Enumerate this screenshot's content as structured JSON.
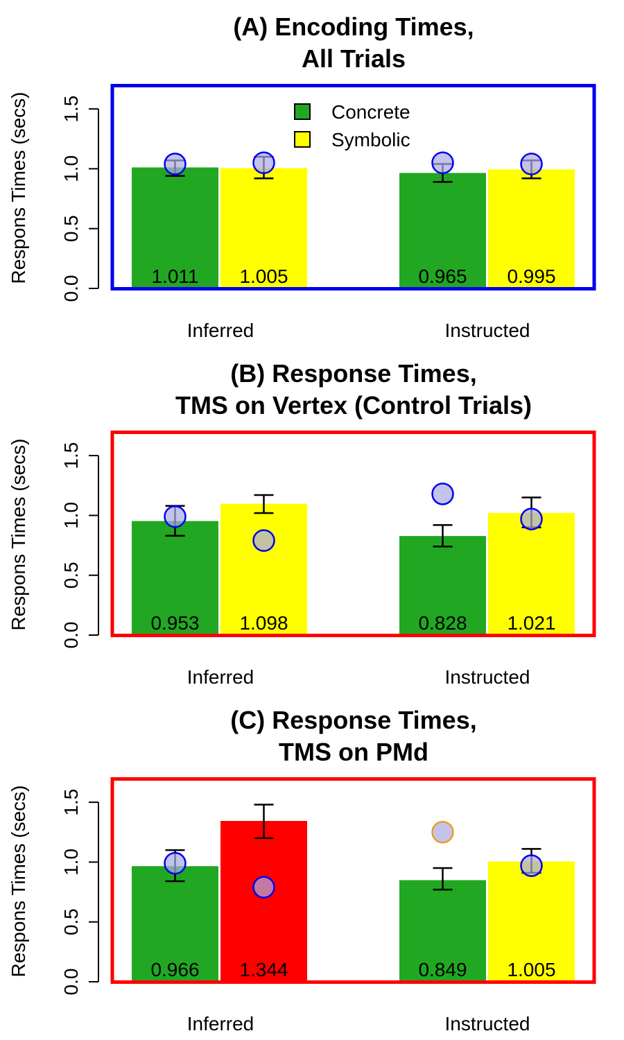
{
  "colors": {
    "concrete": "#22a722",
    "symbolic": "#ffff00",
    "highlight": "#ff0000",
    "marker_fill": "#a9a9e6",
    "marker_stroke": "#0000ee",
    "marker_stroke_alt": "#e6a020",
    "frame_a": "#0000ee",
    "frame_bc": "#ff0000"
  },
  "legend": {
    "items": [
      {
        "name": "Concrete",
        "color": "#22a722"
      },
      {
        "name": "Symbolic",
        "color": "#ffff00"
      }
    ]
  },
  "chart_data": [
    {
      "type": "bar",
      "title_lines": [
        "(A) Encoding Times,",
        "All Trials"
      ],
      "ylabel": "Respons Times (secs)",
      "ylim": [
        0,
        1.7
      ],
      "yticks": [
        "0.0",
        "0.5",
        "1.0",
        "1.5"
      ],
      "categories": [
        "Inferred",
        "Instructed"
      ],
      "series": [
        {
          "name": "Concrete",
          "values": [
            1.011,
            0.965
          ],
          "labels": [
            "1.011",
            "0.965"
          ],
          "errors": [
            [
              0.94,
              1.07
            ],
            [
              0.89,
              1.04
            ]
          ]
        },
        {
          "name": "Symbolic",
          "values": [
            1.005,
            0.995
          ],
          "labels": [
            "1.005",
            "0.995"
          ],
          "errors": [
            [
              0.92,
              1.1
            ],
            [
              0.92,
              1.07
            ]
          ]
        }
      ],
      "markers": [
        [
          1.04,
          1.05
        ],
        [
          1.05,
          1.04
        ]
      ],
      "bar_colors": [
        [
          "#22a722",
          "#ffff00"
        ],
        [
          "#22a722",
          "#ffff00"
        ]
      ],
      "marker_strokes": [
        [
          "#0000ee",
          "#0000ee"
        ],
        [
          "#0000ee",
          "#0000ee"
        ]
      ],
      "frame_color": "#0000ee",
      "legend": "top-center"
    },
    {
      "type": "bar",
      "title_lines": [
        "(B) Response Times,",
        "TMS on Vertex (Control Trials)"
      ],
      "ylabel": "Respons Times (secs)",
      "ylim": [
        0,
        1.7
      ],
      "yticks": [
        "0.0",
        "0.5",
        "1.0",
        "1.5"
      ],
      "categories": [
        "Inferred",
        "Instructed"
      ],
      "series": [
        {
          "name": "Concrete",
          "values": [
            0.953,
            0.828
          ],
          "labels": [
            "0.953",
            "0.828"
          ],
          "errors": [
            [
              0.83,
              1.08
            ],
            [
              0.74,
              0.92
            ]
          ]
        },
        {
          "name": "Symbolic",
          "values": [
            1.098,
            1.021
          ],
          "labels": [
            "1.098",
            "1.021"
          ],
          "errors": [
            [
              1.02,
              1.17
            ],
            [
              0.9,
              1.15
            ]
          ]
        }
      ],
      "markers": [
        [
          0.99,
          0.79
        ],
        [
          1.18,
          0.97
        ]
      ],
      "bar_colors": [
        [
          "#22a722",
          "#ffff00"
        ],
        [
          "#22a722",
          "#ffff00"
        ]
      ],
      "marker_strokes": [
        [
          "#0000ee",
          "#0000ee"
        ],
        [
          "#0000ee",
          "#0000ee"
        ]
      ],
      "frame_color": "#ff0000"
    },
    {
      "type": "bar",
      "title_lines": [
        "(C) Response Times,",
        "TMS on PMd"
      ],
      "ylabel": "Respons Times (secs)",
      "ylim": [
        0,
        1.7
      ],
      "yticks": [
        "0.0",
        "0.5",
        "1.0",
        "1.5"
      ],
      "categories": [
        "Inferred",
        "Instructed"
      ],
      "series": [
        {
          "name": "Concrete",
          "values": [
            0.966,
            0.849
          ],
          "labels": [
            "0.966",
            "0.849"
          ],
          "errors": [
            [
              0.84,
              1.1
            ],
            [
              0.77,
              0.95
            ]
          ]
        },
        {
          "name": "Symbolic",
          "values": [
            1.344,
            1.005
          ],
          "labels": [
            "1.344",
            "1.005"
          ],
          "errors": [
            [
              1.2,
              1.48
            ],
            [
              0.91,
              1.11
            ]
          ]
        }
      ],
      "markers": [
        [
          0.99,
          0.79
        ],
        [
          1.25,
          0.97
        ]
      ],
      "bar_colors": [
        [
          "#22a722",
          "#ff0000"
        ],
        [
          "#22a722",
          "#ffff00"
        ]
      ],
      "marker_strokes": [
        [
          "#0000ee",
          "#0000ee"
        ],
        [
          "#e6a020",
          "#0000ee"
        ]
      ],
      "frame_color": "#ff0000"
    }
  ]
}
